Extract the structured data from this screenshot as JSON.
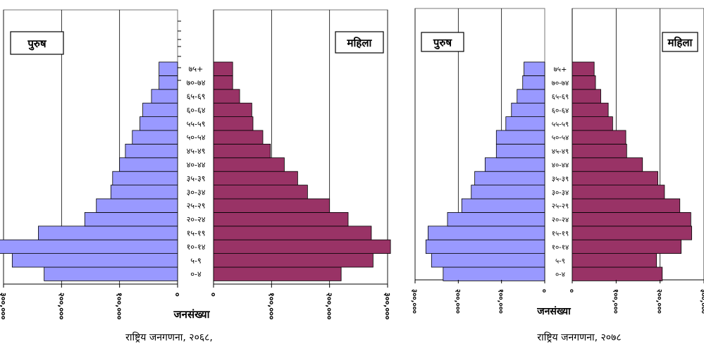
{
  "chart_data": [
    {
      "type": "bar",
      "subtype": "population-pyramid",
      "caption": "राष्ट्रिय जनगणना, २०६८,",
      "xlabel": "जनसंख्या",
      "legend": {
        "male": "पुरुष",
        "female": "महिला"
      },
      "categories": [
        "०-४",
        "५-९",
        "१०-१४",
        "१५-१९",
        "२०-२४",
        "२५-२९",
        "३०-३४",
        "३५-३९",
        "४०-४४",
        "४५-४९",
        "५०-५४",
        "५५-५९",
        "६०-६४",
        "६५-६९",
        "७०-७४",
        "७५+"
      ],
      "male_ticks": [
        "३००,०००",
        "२००,०००",
        "१००,०००",
        "०"
      ],
      "female_ticks": [
        "०",
        "१००,०००",
        "२००,०००",
        "३००,०००"
      ],
      "xlim": [
        0,
        300000
      ],
      "series": [
        {
          "name": "पुरुष",
          "values": [
            230000,
            285000,
            310000,
            240000,
            160000,
            140000,
            115000,
            112000,
            100000,
            90000,
            78000,
            65000,
            60000,
            45000,
            32000,
            32000
          ]
        },
        {
          "name": "महिला",
          "values": [
            220000,
            275000,
            305000,
            272000,
            232000,
            200000,
            162000,
            145000,
            122000,
            98000,
            85000,
            68000,
            66000,
            45000,
            33000,
            33000
          ]
        }
      ]
    },
    {
      "type": "bar",
      "subtype": "population-pyramid",
      "caption": "राष्ट्रिय जनगणना, २०७८",
      "xlabel": "जनसंख्या",
      "legend": {
        "male": "पुरुष",
        "female": "महिला"
      },
      "categories": [
        "०-४",
        "५-९",
        "१०-१४",
        "१५-१९",
        "२०-२४",
        "२५-२९",
        "३०-३४",
        "३५-३९",
        "४०-४४",
        "४५-४९",
        "५०-५४",
        "५५-५९",
        "६०-६४",
        "६५-६९",
        "७०-७४",
        "७५+"
      ],
      "male_ticks": [
        "३००,०००",
        "२००,०००",
        "१००,०००",
        "०"
      ],
      "female_ticks": [
        "०",
        "१००,०००",
        "२००,०००",
        "३००,०००"
      ],
      "xlim": [
        0,
        300000
      ],
      "series": [
        {
          "name": "पुरुष",
          "values": [
            235000,
            262000,
            275000,
            270000,
            225000,
            192000,
            170000,
            162000,
            138000,
            112000,
            112000,
            90000,
            77000,
            64000,
            51000,
            48000
          ]
        },
        {
          "name": "महिला",
          "values": [
            205000,
            192000,
            248000,
            272000,
            270000,
            245000,
            210000,
            195000,
            160000,
            124000,
            122000,
            92000,
            82000,
            65000,
            53000,
            50000
          ]
        }
      ]
    }
  ]
}
